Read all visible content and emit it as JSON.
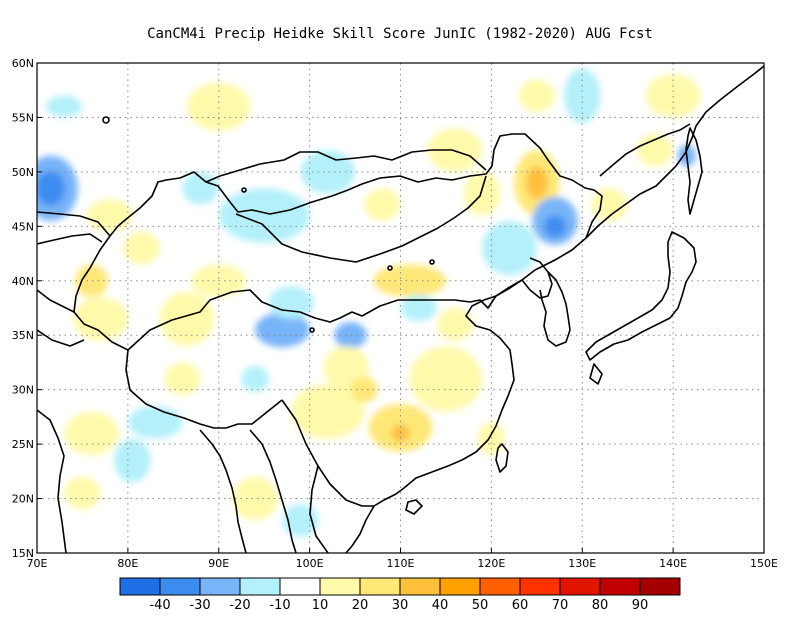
{
  "title": "CanCM4i Precip Heidke Skill Score JunIC (1982-2020) AUG Fcst",
  "map": {
    "lon_range": [
      70,
      150
    ],
    "lat_range": [
      15,
      60
    ],
    "lon_ticks": [
      "70E",
      "80E",
      "90E",
      "100E",
      "110E",
      "120E",
      "130E",
      "140E",
      "150E"
    ],
    "lat_ticks": [
      "15N",
      "20N",
      "25N",
      "30N",
      "35N",
      "40N",
      "45N",
      "50N",
      "55N",
      "60N"
    ],
    "grid": true
  },
  "colorbar": {
    "labels": [
      "-40",
      "-30",
      "-20",
      "-10",
      "10",
      "20",
      "30",
      "40",
      "50",
      "60",
      "70",
      "80",
      "90"
    ],
    "colors": [
      "#1e6ee6",
      "#3c8cf0",
      "#78b4f8",
      "#b4f0fa",
      "#ffffff",
      "#fffaaa",
      "#ffe878",
      "#ffc03c",
      "#ffa000",
      "#ff6000",
      "#ff3200",
      "#e11400",
      "#c00000",
      "#a50000"
    ]
  },
  "anomalies": [
    {
      "lon": 71.5,
      "lat": 48.5,
      "rx": 3,
      "ry": 3,
      "color": "#78b4f8"
    },
    {
      "lon": 71.5,
      "lat": 48.5,
      "rx": 1.6,
      "ry": 1.6,
      "color": "#3c8cf0"
    },
    {
      "lon": 125,
      "lat": 49,
      "rx": 2.5,
      "ry": 3,
      "color": "#ffe878"
    },
    {
      "lon": 125,
      "lat": 49,
      "rx": 1.2,
      "ry": 1.5,
      "color": "#ffc03c"
    },
    {
      "lon": 127,
      "lat": 45.5,
      "rx": 2.5,
      "ry": 2.2,
      "color": "#78b4f8"
    },
    {
      "lon": 127,
      "lat": 45,
      "rx": 1.2,
      "ry": 1,
      "color": "#3c8cf0"
    },
    {
      "lon": 97,
      "lat": 35.5,
      "rx": 3,
      "ry": 1.6,
      "color": "#78b4f8"
    },
    {
      "lon": 104.5,
      "lat": 35,
      "rx": 1.8,
      "ry": 1.2,
      "color": "#78b4f8"
    },
    {
      "lon": 110,
      "lat": 26.5,
      "rx": 3.5,
      "ry": 2.2,
      "color": "#ffe878"
    },
    {
      "lon": 110,
      "lat": 26,
      "rx": 1,
      "ry": 0.8,
      "color": "#ffc03c"
    },
    {
      "lon": 111,
      "lat": 40,
      "rx": 4,
      "ry": 1.5,
      "color": "#ffe878"
    },
    {
      "lon": 95,
      "lat": 46,
      "rx": 5,
      "ry": 2.5,
      "color": "#b4f0fa"
    },
    {
      "lon": 88,
      "lat": 48.5,
      "rx": 2,
      "ry": 1.5,
      "color": "#b4f0fa"
    },
    {
      "lon": 90,
      "lat": 56,
      "rx": 3.5,
      "ry": 2.2,
      "color": "#fffaaa"
    },
    {
      "lon": 77,
      "lat": 36.5,
      "rx": 3,
      "ry": 2,
      "color": "#fffaaa"
    },
    {
      "lon": 86.5,
      "lat": 36.5,
      "rx": 3,
      "ry": 2.5,
      "color": "#fffaaa"
    },
    {
      "lon": 115,
      "lat": 31,
      "rx": 4,
      "ry": 3,
      "color": "#fffaaa"
    },
    {
      "lon": 102,
      "lat": 28,
      "rx": 4,
      "ry": 2.5,
      "color": "#fffaaa"
    },
    {
      "lon": 122,
      "lat": 43,
      "rx": 3,
      "ry": 2.5,
      "color": "#b4f0fa"
    },
    {
      "lon": 116,
      "lat": 52,
      "rx": 3,
      "ry": 2,
      "color": "#fffaaa"
    },
    {
      "lon": 130,
      "lat": 57,
      "rx": 2,
      "ry": 2.5,
      "color": "#b4f0fa"
    },
    {
      "lon": 125,
      "lat": 57,
      "rx": 2,
      "ry": 1.5,
      "color": "#fffaaa"
    },
    {
      "lon": 140,
      "lat": 57,
      "rx": 3,
      "ry": 2,
      "color": "#fffaaa"
    },
    {
      "lon": 133,
      "lat": 47,
      "rx": 2,
      "ry": 1.5,
      "color": "#fffaaa"
    },
    {
      "lon": 76,
      "lat": 40,
      "rx": 1.8,
      "ry": 1.5,
      "color": "#ffe878"
    },
    {
      "lon": 81.5,
      "lat": 43,
      "rx": 2,
      "ry": 1.5,
      "color": "#fffaaa"
    },
    {
      "lon": 90,
      "lat": 40,
      "rx": 3,
      "ry": 1.5,
      "color": "#fffaaa"
    },
    {
      "lon": 98,
      "lat": 38,
      "rx": 2.5,
      "ry": 1.5,
      "color": "#b4f0fa"
    },
    {
      "lon": 104,
      "lat": 32,
      "rx": 2.5,
      "ry": 2,
      "color": "#fffaaa"
    },
    {
      "lon": 106,
      "lat": 30,
      "rx": 1.5,
      "ry": 1.2,
      "color": "#ffe878"
    },
    {
      "lon": 80.5,
      "lat": 23.5,
      "rx": 2,
      "ry": 2,
      "color": "#b4f0fa"
    },
    {
      "lon": 83,
      "lat": 27,
      "rx": 3,
      "ry": 1.5,
      "color": "#b4f0fa"
    },
    {
      "lon": 76,
      "lat": 26,
      "rx": 3,
      "ry": 2,
      "color": "#fffaaa"
    },
    {
      "lon": 75,
      "lat": 20.5,
      "rx": 2,
      "ry": 1.5,
      "color": "#fffaaa"
    },
    {
      "lon": 94,
      "lat": 20,
      "rx": 2.5,
      "ry": 2,
      "color": "#fffaaa"
    },
    {
      "lon": 99,
      "lat": 18,
      "rx": 2,
      "ry": 1.5,
      "color": "#b4f0fa"
    },
    {
      "lon": 116,
      "lat": 36,
      "rx": 2,
      "ry": 1.5,
      "color": "#fffaaa"
    },
    {
      "lon": 102,
      "lat": 50,
      "rx": 3,
      "ry": 2,
      "color": "#b4f0fa"
    },
    {
      "lon": 108,
      "lat": 47,
      "rx": 2,
      "ry": 1.5,
      "color": "#fffaaa"
    },
    {
      "lon": 119,
      "lat": 48,
      "rx": 2,
      "ry": 2,
      "color": "#fffaaa"
    },
    {
      "lon": 73,
      "lat": 56,
      "rx": 2,
      "ry": 1,
      "color": "#b4f0fa"
    },
    {
      "lon": 78,
      "lat": 46,
      "rx": 2.5,
      "ry": 1.5,
      "color": "#fffaaa"
    },
    {
      "lon": 94,
      "lat": 31,
      "rx": 1.5,
      "ry": 1.2,
      "color": "#b4f0fa"
    },
    {
      "lon": 86,
      "lat": 31,
      "rx": 2,
      "ry": 1.5,
      "color": "#fffaaa"
    },
    {
      "lon": 112,
      "lat": 37.5,
      "rx": 2,
      "ry": 1.2,
      "color": "#b4f0fa"
    },
    {
      "lon": 138,
      "lat": 52,
      "rx": 2,
      "ry": 1.5,
      "color": "#fffaaa"
    },
    {
      "lon": 141.5,
      "lat": 51.5,
      "rx": 1,
      "ry": 1,
      "color": "#78b4f8"
    },
    {
      "lon": 120,
      "lat": 25.5,
      "rx": 1.5,
      "ry": 1.5,
      "color": "#fffaaa"
    }
  ]
}
